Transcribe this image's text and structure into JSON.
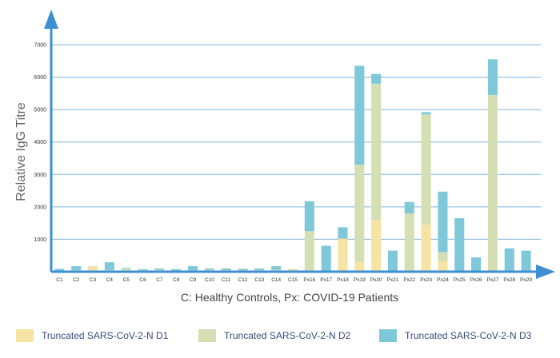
{
  "chart_data": {
    "type": "bar",
    "stacked": true,
    "title": "",
    "xlabel": "C: Healthy Controls, Px: COVID-19 Patients",
    "ylabel": "Relative IgG Titre",
    "ylim": [
      0,
      7000
    ],
    "yticks": [
      1000,
      2000,
      3000,
      4000,
      5000,
      6000,
      7000
    ],
    "grid": true,
    "legend_position": "bottom",
    "categories": [
      "C1",
      "C2",
      "C3",
      "C4",
      "C5",
      "C6",
      "C7",
      "C8",
      "C9",
      "C10",
      "C11",
      "C12",
      "C13",
      "C14",
      "C15",
      "Px16",
      "Px17",
      "Px18",
      "Px19",
      "Px20",
      "Px21",
      "Px22",
      "Px23",
      "Px24",
      "Px25",
      "Px26",
      "Px27",
      "Px28",
      "Px29"
    ],
    "series": [
      {
        "name": "Truncated SARS-CoV-2-N D1",
        "color": "#f7e3a4",
        "values": [
          10,
          20,
          150,
          20,
          60,
          30,
          40,
          20,
          20,
          30,
          20,
          20,
          20,
          30,
          50,
          0,
          0,
          1020,
          300,
          1600,
          0,
          0,
          1450,
          320,
          0,
          0,
          0,
          0,
          0
        ]
      },
      {
        "name": "Truncated SARS-CoV-2-N D2",
        "color": "#d4dfb4",
        "values": [
          20,
          30,
          20,
          30,
          20,
          20,
          20,
          20,
          20,
          30,
          30,
          30,
          30,
          30,
          30,
          1250,
          0,
          0,
          3000,
          4200,
          0,
          1800,
          3400,
          280,
          0,
          0,
          5450,
          0,
          0
        ]
      },
      {
        "name": "Truncated SARS-CoV-2-N D3",
        "color": "#7fc8da",
        "values": [
          60,
          120,
          0,
          240,
          30,
          30,
          40,
          40,
          130,
          40,
          50,
          40,
          50,
          110,
          0,
          920,
          800,
          350,
          3050,
          300,
          650,
          350,
          70,
          1870,
          1650,
          440,
          1100,
          720,
          650
        ]
      }
    ]
  }
}
